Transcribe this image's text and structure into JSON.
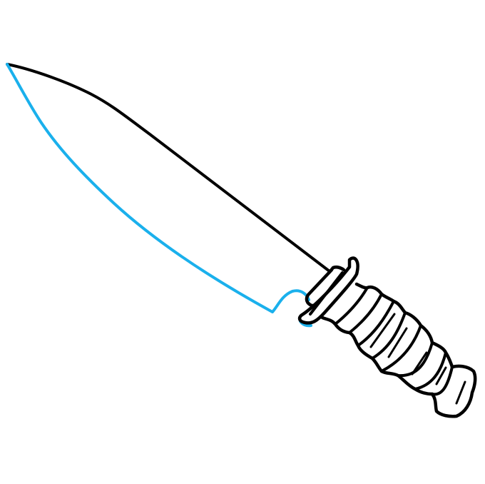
{
  "illustration": {
    "subject": "knife-drawing",
    "colors": {
      "outline": "#000000",
      "highlighted_step": "#1ab0ec",
      "background": "#ffffff"
    }
  }
}
